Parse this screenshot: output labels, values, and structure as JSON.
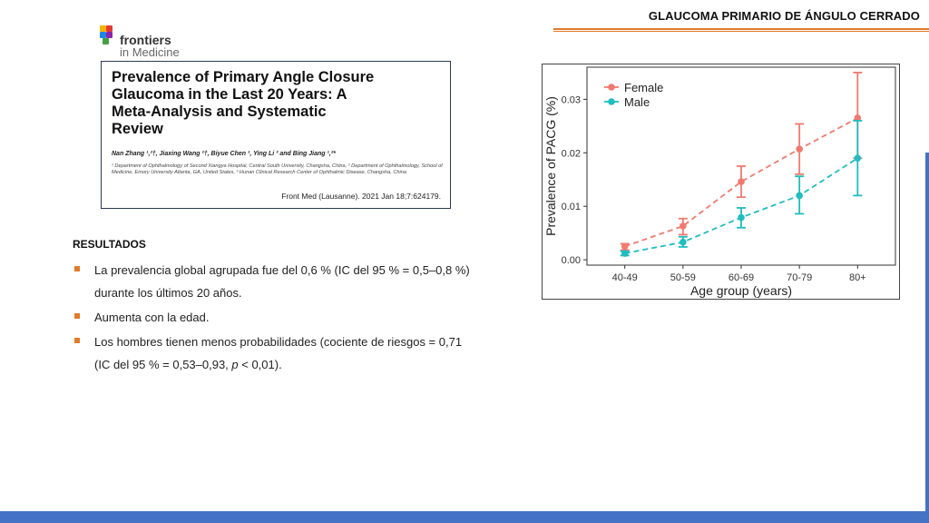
{
  "header": {
    "title": "GLAUCOMA PRIMARIO DE ÁNGULO CERRADO"
  },
  "logo": {
    "name": "frontiers",
    "subtitle": "in Medicine"
  },
  "paper": {
    "title_lines": [
      "Prevalence of Primary Angle Closure",
      "Glaucoma in the Last 20 Years: A",
      "Meta-Analysis and Systematic",
      "Review"
    ],
    "authors": "Nan Zhang ¹,²†, Jiaxing Wang ²†, Biyue Chen ¹, Ying Li ³ and Bing Jiang ¹,²*",
    "affiliations": "¹ Department of Ophthalmology of Second Xiangya Hospital, Central South University, Changsha, China, ² Department of Ophthalmology, School of Medicine, Emory University Atlanta, GA, United States, ³ Hunan Clinical Research Center of Ophthalmic Disease, Changsha, China",
    "citation": "Front Med (Lausanne). 2021 Jan 18;7:624179."
  },
  "results": {
    "heading": "RESULTADOS",
    "bullets": [
      {
        "line1": "La prevalencia global agrupada fue del 0,6 % (IC del 95 % = 0,5–0,8 %)",
        "line2": "durante los últimos 20 años."
      },
      {
        "line1": "Aumenta con la edad.",
        "line2": ""
      },
      {
        "line1": "Los hombres tienen menos probabilidades (cociente de riesgos = 0,71",
        "line2_pre": "(IC del 95 % = 0,53–0,93, ",
        "line2_p": "p",
        "line2_post": " < 0,01)."
      }
    ]
  },
  "colors": {
    "accent": "#e07b2a",
    "blue": "#4472c4",
    "female": "#f07a6f",
    "male": "#1fbdc0"
  },
  "chart_data": {
    "type": "line",
    "title": "",
    "xlabel": "Age group (years)",
    "ylabel": "Prevalence of PACG (%)",
    "categories": [
      "40-49",
      "50-59",
      "60-69",
      "70-79",
      "80+"
    ],
    "ylim": [
      -0.001,
      0.036
    ],
    "yticks": [
      0.0,
      0.01,
      0.02,
      0.03
    ],
    "ytick_labels": [
      "0.00",
      "0.01",
      "0.02",
      "0.03"
    ],
    "legend": "top-left",
    "series": [
      {
        "name": "Female",
        "color": "#f07a6f",
        "values": [
          0.0025,
          0.0063,
          0.0146,
          0.0207,
          0.0265
        ],
        "lower": [
          0.0018,
          0.0047,
          0.0117,
          0.016,
          0.019
        ],
        "upper": [
          0.003,
          0.0077,
          0.0175,
          0.0254,
          0.035
        ]
      },
      {
        "name": "Male",
        "color": "#1fbdc0",
        "values": [
          0.0012,
          0.0033,
          0.0079,
          0.012,
          0.019
        ],
        "lower": [
          0.0008,
          0.0024,
          0.006,
          0.0086,
          0.012
        ],
        "upper": [
          0.0016,
          0.0043,
          0.0097,
          0.0156,
          0.026
        ]
      }
    ]
  }
}
